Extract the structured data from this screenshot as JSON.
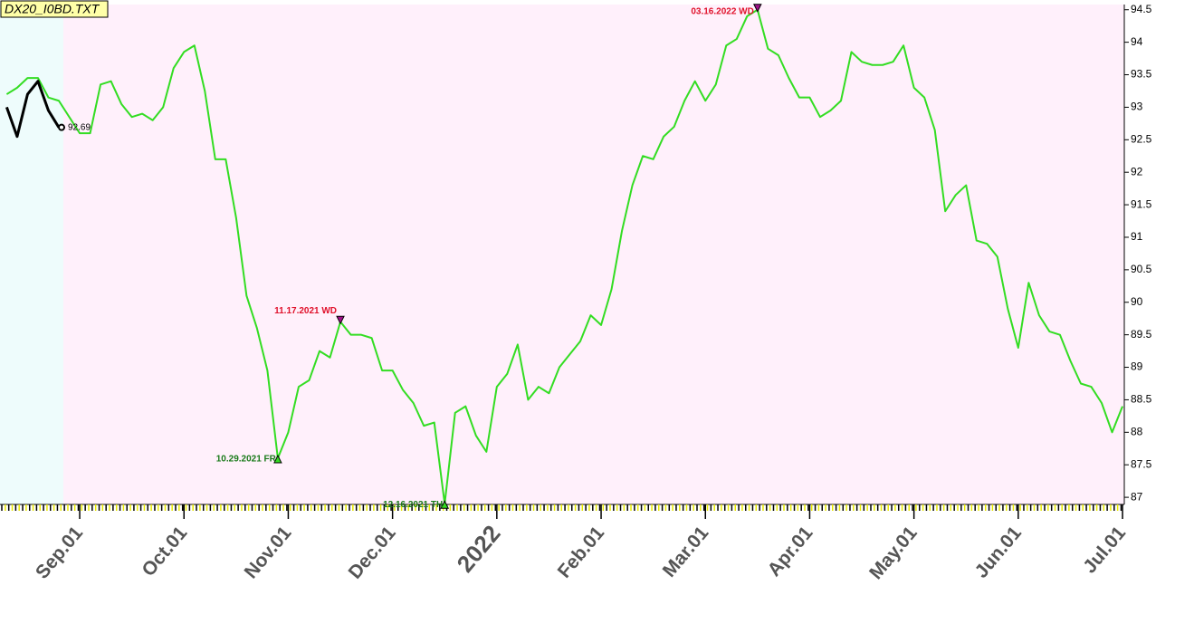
{
  "chart_data": {
    "type": "line",
    "title": "DX20_I0BD.TXT",
    "categories": [
      null,
      null,
      null,
      null,
      null,
      null,
      null,
      "Sep.01",
      null,
      null,
      null,
      null,
      null,
      null,
      null,
      null,
      null,
      "Oct.01",
      null,
      null,
      null,
      null,
      null,
      null,
      null,
      null,
      null,
      "Nov.01",
      null,
      null,
      null,
      null,
      null,
      null,
      null,
      null,
      null,
      "Dec.01",
      null,
      null,
      null,
      null,
      null,
      null,
      null,
      null,
      null,
      "2022",
      null,
      null,
      null,
      null,
      null,
      null,
      null,
      null,
      null,
      "Feb.01",
      null,
      null,
      null,
      null,
      null,
      null,
      null,
      null,
      null,
      "Mar.01",
      null,
      null,
      null,
      null,
      null,
      null,
      null,
      null,
      null,
      "Apr.01",
      null,
      null,
      null,
      null,
      null,
      null,
      null,
      null,
      null,
      "May.01",
      null,
      null,
      null,
      null,
      null,
      null,
      null,
      null,
      null,
      "Jun.01",
      null,
      null,
      null,
      null,
      null,
      null,
      null,
      null,
      null,
      "Jul.01"
    ],
    "series": [
      {
        "color": "#33dd22",
        "values": [
          93.2,
          93.3,
          93.45,
          93.45,
          93.15,
          93.1,
          92.85,
          92.6,
          92.6,
          93.35,
          93.4,
          93.05,
          92.85,
          92.9,
          92.8,
          93.0,
          93.6,
          93.85,
          93.95,
          93.25,
          92.2,
          92.2,
          91.3,
          90.1,
          89.6,
          88.95,
          87.6,
          88.0,
          88.7,
          88.8,
          89.25,
          89.15,
          89.7,
          89.5,
          89.5,
          89.45,
          88.95,
          88.95,
          88.65,
          88.45,
          88.1,
          88.15,
          86.9,
          88.3,
          88.4,
          87.95,
          87.7,
          88.7,
          88.9,
          89.35,
          88.5,
          88.7,
          88.6,
          89.0,
          89.2,
          89.4,
          89.8,
          89.65,
          90.2,
          91.1,
          91.8,
          92.25,
          92.2,
          92.55,
          92.7,
          93.1,
          93.4,
          93.1,
          93.35,
          93.95,
          94.05,
          94.4,
          94.5,
          93.9,
          93.8,
          93.45,
          93.15,
          93.15,
          92.85,
          92.95,
          93.1,
          93.85,
          93.7,
          93.65,
          93.65,
          93.7,
          93.95,
          93.3,
          93.15,
          92.65,
          91.4,
          91.65,
          91.8,
          90.95,
          90.9,
          90.7,
          89.9,
          89.3,
          90.3,
          89.8,
          89.55,
          89.5,
          89.1,
          88.75,
          88.7,
          88.45,
          88.0,
          88.4
        ]
      },
      {
        "color": "#000000",
        "show_last_value": true,
        "values": [
          93.0,
          92.55,
          93.2,
          93.4,
          92.95,
          92.69,
          null,
          null,
          null,
          null,
          null,
          null,
          null,
          null,
          null,
          null,
          null,
          null,
          null,
          null,
          null,
          null,
          null,
          null,
          null,
          null,
          null,
          null,
          null,
          null,
          null,
          null,
          null,
          null,
          null,
          null,
          null,
          null,
          null,
          null,
          null,
          null,
          null,
          null,
          null,
          null,
          null,
          null,
          null,
          null,
          null,
          null,
          null,
          null,
          null,
          null,
          null,
          null,
          null,
          null,
          null,
          null,
          null,
          null,
          null,
          null,
          null,
          null,
          null,
          null,
          null,
          null,
          null,
          null,
          null,
          null,
          null,
          null,
          null,
          null,
          null,
          null,
          null,
          null,
          null,
          null,
          null,
          null,
          null,
          null,
          null,
          null,
          null,
          null,
          null,
          null,
          null,
          null,
          null,
          null,
          null,
          null,
          null,
          null,
          null,
          null,
          null,
          null
        ]
      }
    ],
    "annotations": [
      "10.29.2021 FR",
      "11.17.2021 WD",
      "12.16.2021 TH",
      "03.16.2022 WD"
    ],
    "ylim": [
      86.89,
      94.58
    ],
    "yticks": [
      87,
      87.5,
      88,
      88.5,
      89,
      89.5,
      90,
      90.5,
      91,
      91.5,
      92,
      92.5,
      93,
      93.5,
      94,
      94.5
    ]
  }
}
